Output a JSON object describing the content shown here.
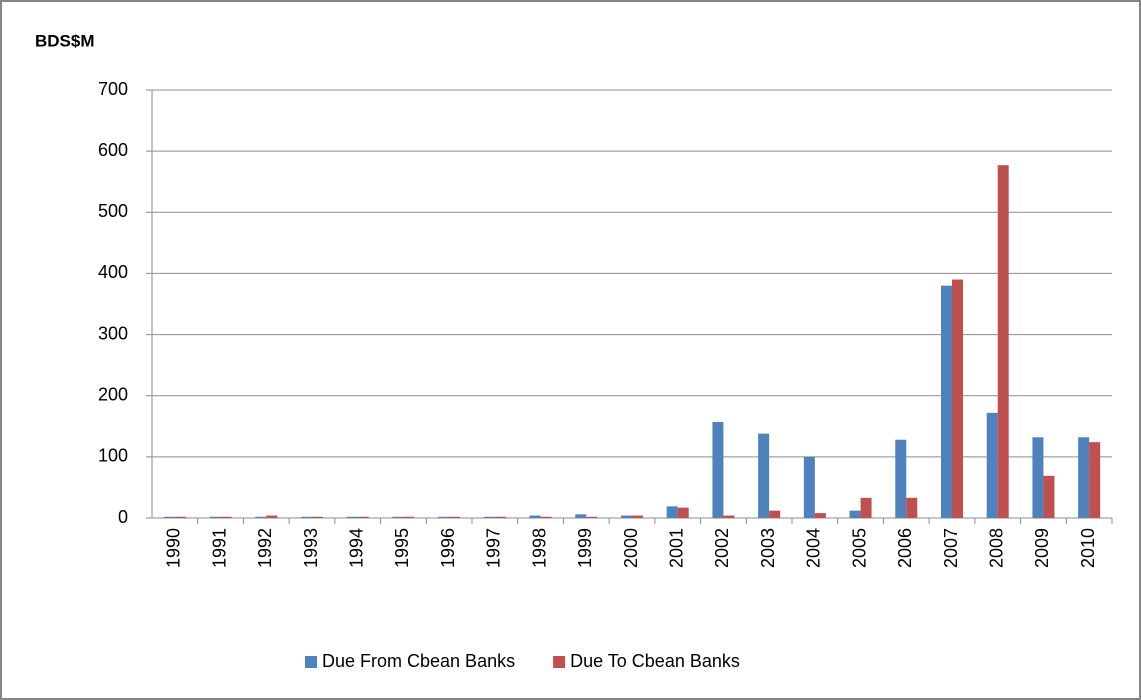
{
  "chart_data": {
    "type": "bar",
    "y_label": "BDS$M",
    "categories": [
      "1990",
      "1991",
      "1992",
      "1993",
      "1994",
      "1995",
      "1996",
      "1997",
      "1998",
      "1999",
      "2000",
      "2001",
      "2002",
      "2003",
      "2004",
      "2005",
      "2006",
      "2007",
      "2008",
      "2009",
      "2010"
    ],
    "series": [
      {
        "name": "Due From Cbean Banks",
        "color": "#4f81bd",
        "values": [
          2,
          2,
          2,
          2,
          2,
          2,
          2,
          2,
          4,
          6,
          4,
          19,
          157,
          138,
          100,
          12,
          128,
          380,
          172,
          132,
          132
        ]
      },
      {
        "name": "Due To Cbean Banks",
        "color": "#c0504d",
        "values": [
          2,
          2,
          4,
          2,
          2,
          2,
          2,
          2,
          2,
          2,
          4,
          17,
          4,
          12,
          8,
          33,
          33,
          390,
          577,
          69,
          124
        ]
      }
    ],
    "ylim": [
      0,
      700
    ],
    "yticks": [
      0,
      100,
      200,
      300,
      400,
      500,
      600,
      700
    ],
    "grid": true,
    "legend": "bottom"
  }
}
